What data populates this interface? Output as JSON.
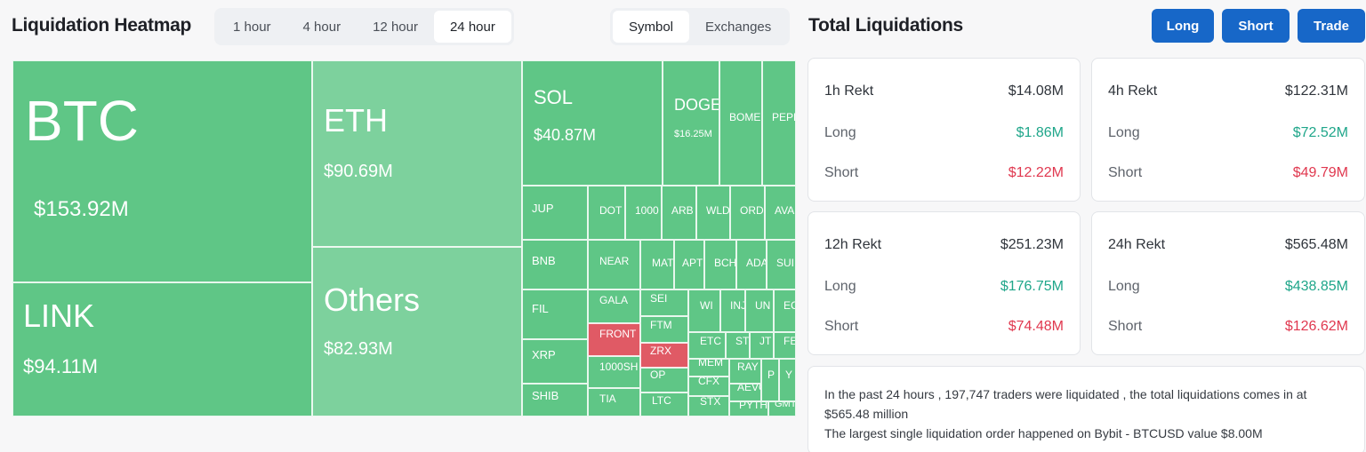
{
  "heatmap": {
    "title": "Liquidation Heatmap",
    "time_options": [
      "1 hour",
      "4 hour",
      "12 hour",
      "24 hour"
    ],
    "active_time": "24 hour",
    "mode_options": [
      "Symbol",
      "Exchanges"
    ],
    "active_mode": "Symbol",
    "colors": {
      "long_heavy": "#5fc686",
      "light": "#7dd19d",
      "short_heavy": "#e05a65"
    },
    "tiles": [
      {
        "symbol": "BTC",
        "value": "$153.92M"
      },
      {
        "symbol": "LINK",
        "value": "$94.11M"
      },
      {
        "symbol": "ETH",
        "value": "$90.69M"
      },
      {
        "symbol": "Others",
        "value": "$82.93M"
      },
      {
        "symbol": "SOL",
        "value": "$40.87M"
      },
      {
        "symbol": "DOGE",
        "value": "$16.25M"
      },
      {
        "symbol": "BOME",
        "value": ""
      },
      {
        "symbol": "PEPE",
        "value": ""
      },
      {
        "symbol": "JUP",
        "value": ""
      },
      {
        "symbol": "DOT",
        "value": ""
      },
      {
        "symbol": "1000",
        "value": ""
      },
      {
        "symbol": "ARB",
        "value": ""
      },
      {
        "symbol": "WLD",
        "value": ""
      },
      {
        "symbol": "ORD",
        "value": ""
      },
      {
        "symbol": "AVA",
        "value": ""
      },
      {
        "symbol": "BNB",
        "value": ""
      },
      {
        "symbol": "NEAR",
        "value": ""
      },
      {
        "symbol": "MAT",
        "value": ""
      },
      {
        "symbol": "APT",
        "value": ""
      },
      {
        "symbol": "BCH",
        "value": ""
      },
      {
        "symbol": "ADA",
        "value": ""
      },
      {
        "symbol": "SUI",
        "value": ""
      },
      {
        "symbol": "FIL",
        "value": ""
      },
      {
        "symbol": "GALA",
        "value": ""
      },
      {
        "symbol": "SEI",
        "value": ""
      },
      {
        "symbol": "WI",
        "value": ""
      },
      {
        "symbol": "INJ",
        "value": ""
      },
      {
        "symbol": "UN",
        "value": ""
      },
      {
        "symbol": "EC",
        "value": ""
      },
      {
        "symbol": "FRONT",
        "value": ""
      },
      {
        "symbol": "FTM",
        "value": ""
      },
      {
        "symbol": "XRP",
        "value": ""
      },
      {
        "symbol": "ZRX",
        "value": ""
      },
      {
        "symbol": "ETC",
        "value": ""
      },
      {
        "symbol": "ST",
        "value": ""
      },
      {
        "symbol": "JT",
        "value": ""
      },
      {
        "symbol": "FE",
        "value": ""
      },
      {
        "symbol": "1000SH",
        "value": ""
      },
      {
        "symbol": "MEM",
        "value": ""
      },
      {
        "symbol": "RAY",
        "value": ""
      },
      {
        "symbol": "P",
        "value": ""
      },
      {
        "symbol": "Y",
        "value": ""
      },
      {
        "symbol": "OP",
        "value": ""
      },
      {
        "symbol": "CFX",
        "value": ""
      },
      {
        "symbol": "AEVO",
        "value": ""
      },
      {
        "symbol": "SHIB",
        "value": ""
      },
      {
        "symbol": "TIA",
        "value": ""
      },
      {
        "symbol": "LTC",
        "value": ""
      },
      {
        "symbol": "STX",
        "value": ""
      },
      {
        "symbol": "PYTH",
        "value": ""
      },
      {
        "symbol": "GMT",
        "value": ""
      }
    ]
  },
  "totals": {
    "title": "Total Liquidations",
    "buttons": [
      "Long",
      "Short",
      "Trade"
    ],
    "long_label": "Long",
    "short_label": "Short",
    "cards": [
      {
        "period": "1h Rekt",
        "total": "$14.08M",
        "long": "$1.86M",
        "short": "$12.22M"
      },
      {
        "period": "4h Rekt",
        "total": "$122.31M",
        "long": "$72.52M",
        "short": "$49.79M"
      },
      {
        "period": "12h Rekt",
        "total": "$251.23M",
        "long": "$176.75M",
        "short": "$74.48M"
      },
      {
        "period": "24h Rekt",
        "total": "$565.48M",
        "long": "$438.85M",
        "short": "$126.62M"
      }
    ],
    "summary_line1": "In the past 24 hours , 197,747 traders were liquidated , the total liquidations comes in at $565.48 million",
    "summary_line2": "The largest single liquidation order happened on Bybit - BTCUSD value $8.00M"
  }
}
